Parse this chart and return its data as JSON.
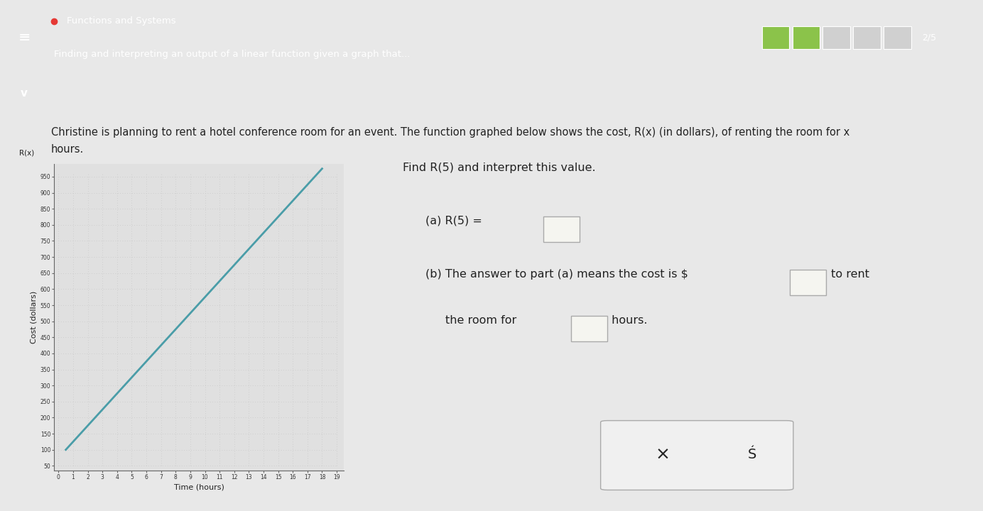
{
  "title_bar_bg": "#3aacb8",
  "title_bar_text": "Functions and Systems",
  "subtitle_text": "Finding and interpreting an output of a linear function given a graph that...",
  "page_bg": "#e8e8e8",
  "content_bg": "#e8e8e8",
  "graph_bg": "#e0e0e0",
  "problem_text_1": "Christine is planning to rent a hotel conference room for an event. The ",
  "problem_text_underline": "function graphed",
  "problem_text_2": " below shows the cost, R̅(̅x̅)̅ (in dollars), of renting the room for x",
  "problem_text_3": "hours.",
  "find_text": "Find R̅(\u00035̅)̅ and interpret this value.",
  "part_a_label": "(a) R(5) = ",
  "part_b_label_1": "(b) The answer to part (a) means the cost is $",
  "part_b_label_2": " to rent",
  "part_b_label_3": "    the room for ",
  "part_b_label_4": " hours.",
  "xlabel": "Time (hours)",
  "ylabel": "Cost (dollars)",
  "y_label_top": "R(x)",
  "x_min": 0,
  "x_max": 19,
  "y_min": 50,
  "y_max": 950,
  "y_tick_step": 50,
  "x_ticks": [
    0,
    1,
    2,
    3,
    4,
    5,
    6,
    7,
    8,
    9,
    10,
    11,
    12,
    13,
    14,
    15,
    16,
    17,
    18,
    19
  ],
  "line_slope": 50,
  "line_intercept": 75,
  "line_color": "#4a9da8",
  "line_x_start": 0.5,
  "line_x_end": 18.0,
  "grid_dot_color": "#c8c8c8",
  "axis_color": "#666666",
  "tick_color": "#333333",
  "text_color": "#222222",
  "progress_filled": 2,
  "progress_total": 5,
  "progress_color_filled": "#8bc34a",
  "progress_color_empty": "#d0d0d0",
  "btn_box_color": "#f0f0f0",
  "btn_border_color": "#aaaaaa",
  "input_box_color": "#f5f5f0",
  "input_border_color": "#aaaaaa",
  "hamburger_color": "white",
  "red_dot_color": "#e53935",
  "chevron_bg": "#3aacb8",
  "chevron_row_bg": "#e8e8e8"
}
